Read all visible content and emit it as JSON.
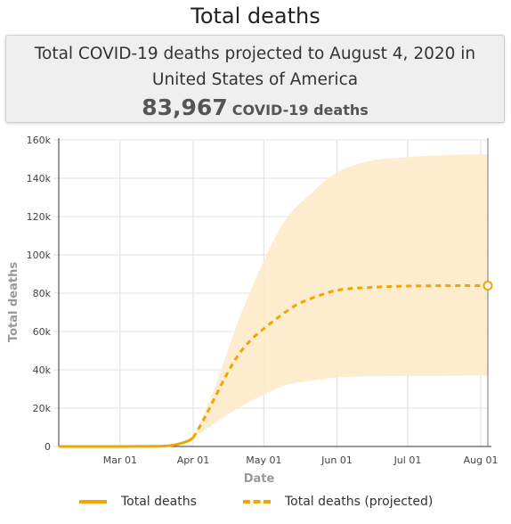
{
  "title": "Total deaths",
  "summary": {
    "text": "Total COVID-19 deaths projected to August 4, 2020 in United States of America",
    "count": "83,967",
    "count_suffix": "COVID-19 deaths"
  },
  "legend": {
    "actual": "Total deaths",
    "projected": "Total deaths (projected)"
  },
  "colors": {
    "line": "#f0a500",
    "band": "#fdebc9",
    "grid": "#e0e0e0"
  },
  "chart_data": {
    "type": "line",
    "title": "",
    "xlabel": "Date",
    "ylabel": "Total deaths",
    "x_range": [
      "2020-02-04",
      "2020-08-04"
    ],
    "ylim": [
      0,
      160000
    ],
    "x_ticks": [
      {
        "date": "2020-03-01",
        "label": "Mar 01"
      },
      {
        "date": "2020-04-01",
        "label": "Apr 01"
      },
      {
        "date": "2020-05-01",
        "label": "May 01"
      },
      {
        "date": "2020-06-01",
        "label": "Jun 01"
      },
      {
        "date": "2020-07-01",
        "label": "Jul 01"
      },
      {
        "date": "2020-08-01",
        "label": "Aug 01"
      }
    ],
    "y_ticks": [
      {
        "value": 0,
        "label": "0"
      },
      {
        "value": 20000,
        "label": "20k"
      },
      {
        "value": 40000,
        "label": "40k"
      },
      {
        "value": 60000,
        "label": "60k"
      },
      {
        "value": 80000,
        "label": "80k"
      },
      {
        "value": 100000,
        "label": "100k"
      },
      {
        "value": 120000,
        "label": "120k"
      },
      {
        "value": 140000,
        "label": "140k"
      },
      {
        "value": 160000,
        "label": "160k"
      }
    ],
    "grid": true,
    "legend_position": "bottom",
    "series": [
      {
        "name": "Total deaths",
        "style": "solid",
        "points": [
          [
            "2020-02-04",
            0
          ],
          [
            "2020-03-01",
            1
          ],
          [
            "2020-03-10",
            30
          ],
          [
            "2020-03-15",
            70
          ],
          [
            "2020-03-20",
            250
          ],
          [
            "2020-03-24",
            800
          ],
          [
            "2020-03-27",
            1700
          ],
          [
            "2020-03-30",
            3000
          ],
          [
            "2020-04-01",
            4500
          ]
        ]
      },
      {
        "name": "Total deaths (projected)",
        "style": "dashed",
        "points": [
          [
            "2020-04-01",
            4500
          ],
          [
            "2020-04-05",
            13000
          ],
          [
            "2020-04-10",
            25000
          ],
          [
            "2020-04-15",
            37000
          ],
          [
            "2020-04-20",
            47500
          ],
          [
            "2020-04-25",
            55000
          ],
          [
            "2020-05-01",
            61500
          ],
          [
            "2020-05-10",
            70000
          ],
          [
            "2020-05-15",
            74000
          ],
          [
            "2020-05-25",
            79000
          ],
          [
            "2020-06-01",
            81500
          ],
          [
            "2020-06-15",
            83000
          ],
          [
            "2020-07-01",
            83700
          ],
          [
            "2020-07-15",
            83900
          ],
          [
            "2020-08-04",
            83967
          ]
        ]
      }
    ],
    "uncertainty_band": {
      "upper": [
        [
          "2020-04-01",
          4500
        ],
        [
          "2020-04-10",
          30000
        ],
        [
          "2020-04-20",
          65000
        ],
        [
          "2020-05-01",
          97000
        ],
        [
          "2020-05-10",
          118000
        ],
        [
          "2020-05-20",
          131000
        ],
        [
          "2020-06-01",
          143000
        ],
        [
          "2020-06-15",
          149000
        ],
        [
          "2020-07-01",
          151000
        ],
        [
          "2020-07-15",
          152000
        ],
        [
          "2020-08-04",
          152500
        ]
      ],
      "lower": [
        [
          "2020-04-01",
          4500
        ],
        [
          "2020-04-10",
          12000
        ],
        [
          "2020-04-20",
          20000
        ],
        [
          "2020-05-01",
          27000
        ],
        [
          "2020-05-10",
          32000
        ],
        [
          "2020-05-20",
          34000
        ],
        [
          "2020-06-01",
          36000
        ],
        [
          "2020-07-01",
          36800
        ],
        [
          "2020-08-04",
          37000
        ]
      ]
    },
    "endpoint": {
      "date": "2020-08-04",
      "value": 83967
    }
  }
}
